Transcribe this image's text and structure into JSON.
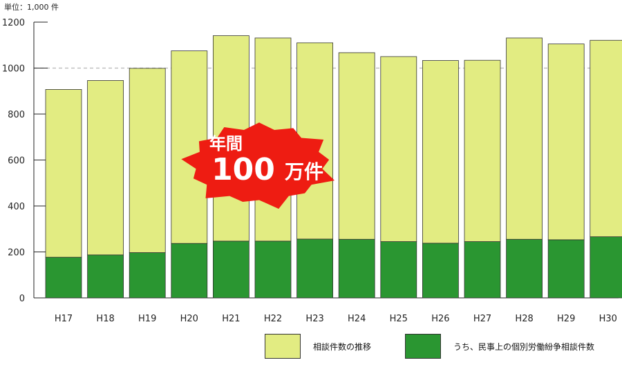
{
  "chart_data": {
    "type": "bar",
    "stacked": true,
    "unit_label": "単位：1,000 件",
    "categories": [
      "H17",
      "H18",
      "H19",
      "H20",
      "H21",
      "H22",
      "H23",
      "H24",
      "H25",
      "H26",
      "H27",
      "H28",
      "H29",
      "H30"
    ],
    "series": [
      {
        "name": "うち、民事上の個別労働紛争相談件数",
        "color": "#2a9631",
        "values": [
          177,
          187,
          197,
          237,
          247,
          247,
          256,
          255,
          245,
          238,
          245,
          255,
          253,
          266
        ]
      },
      {
        "name": "相談件数の推移",
        "color": "#e2ec82",
        "values": [
          730,
          759,
          802,
          838,
          894,
          884,
          854,
          812,
          805,
          795,
          789,
          876,
          852,
          855
        ]
      }
    ],
    "yticks": [
      0,
      200,
      400,
      600,
      800,
      1000,
      1200
    ],
    "ylim": [
      0,
      1200
    ],
    "reference_line": 1000,
    "grid": false,
    "legend_position": "bottom-right",
    "annotation": {
      "line1": "年間",
      "big": "100",
      "suffix": "万件"
    }
  }
}
